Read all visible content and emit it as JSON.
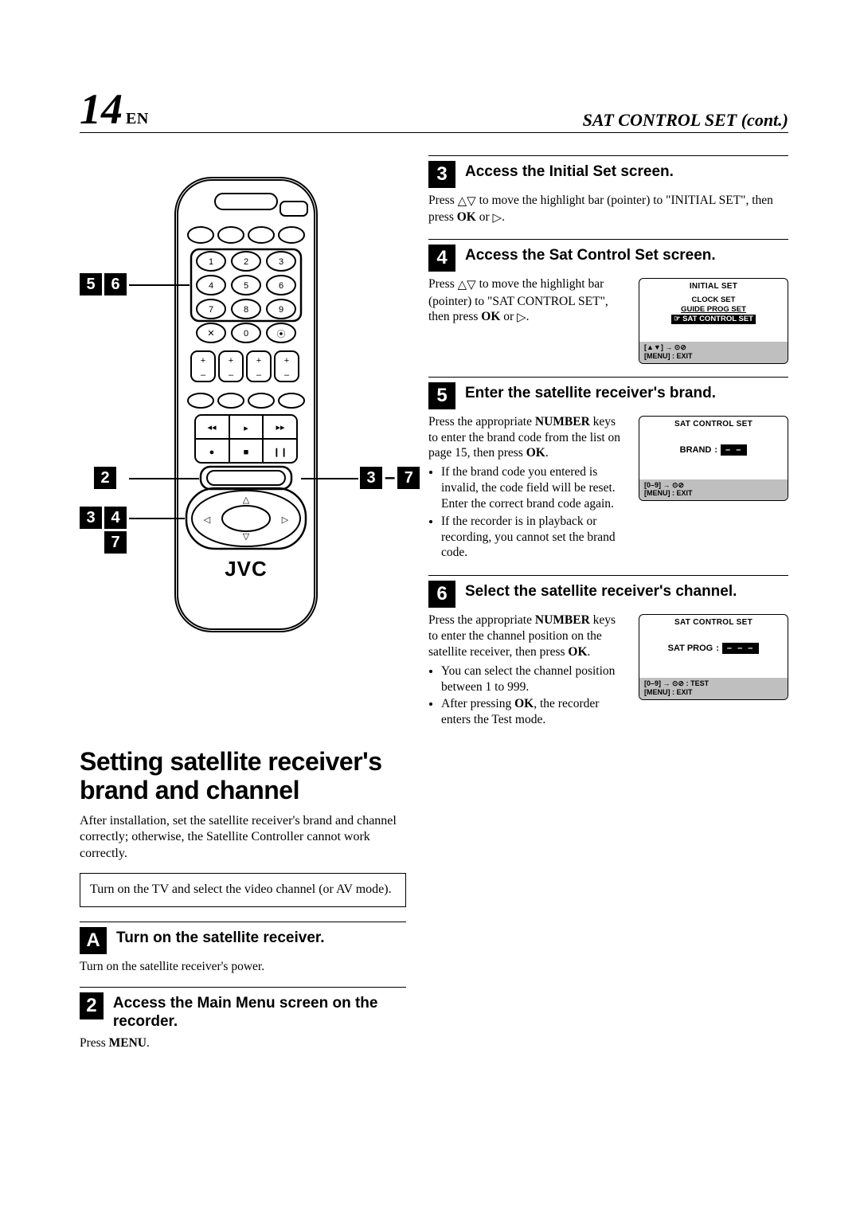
{
  "page": {
    "number": "14",
    "lang": "EN",
    "section": "SAT CONTROL SET (cont.)"
  },
  "remote": {
    "brand": "JVC",
    "callouts": {
      "top_left": [
        "5",
        "6"
      ],
      "mid_left": [
        "2"
      ],
      "mid_right": [
        "3",
        "–",
        "7"
      ],
      "low_left_a": [
        "3",
        "4"
      ],
      "low_left_b": [
        "7"
      ]
    }
  },
  "heading": "Setting satellite receiver's brand and channel",
  "intro": "After installation, set the satellite receiver's brand and channel correctly; otherwise, the Satellite Controller cannot work correctly.",
  "boxed_note": "Turn on the TV and select the video channel (or AV mode).",
  "steps": {
    "1": {
      "title": "Turn on the satellite receiver.",
      "body": "Turn on the satellite receiver's power."
    },
    "2": {
      "title": "Access the Main Menu screen on the recorder.",
      "body_html": "Press <b>MENU</b>."
    },
    "3": {
      "title": "Access the Initial Set screen.",
      "body_html": "Press <span class='tri'>△▽</span> to move the highlight bar (pointer) to \"INITIAL SET\", then press <b>OK</b> or <span class='tri'>▷</span>."
    },
    "4": {
      "title": "Access the Sat Control Set screen.",
      "body_html": "Press <span class='tri'>△▽</span> to move the highlight bar (pointer) to \"SAT CONTROL SET\", then press <b>OK</b> or <span class='tri'>▷</span>.",
      "osd": {
        "title": "INITIAL SET",
        "items": [
          "CLOCK SET",
          "GUIDE PROG SET"
        ],
        "highlight": "☞ SAT CONTROL SET",
        "foot1": "[▲▼] → ⊙⊘",
        "foot2": "[MENU] : EXIT"
      }
    },
    "5": {
      "title": "Enter the satellite receiver's brand.",
      "body_html": "Press the appropriate <b>NUMBER</b> keys to enter the brand code from the list on page 15, then press <b>OK</b>.",
      "bullets": [
        "If the brand code you entered is invalid, the code field will be reset. Enter the correct brand code again.",
        "If the recorder is in playback or recording, you cannot set the brand code."
      ],
      "osd": {
        "title": "SAT CONTROL SET",
        "kv_label": "BRAND",
        "kv_value": "– –",
        "foot1": "[0–9] → ⊙⊘",
        "foot2": "[MENU] : EXIT"
      }
    },
    "6": {
      "title": "Select the satellite receiver's channel.",
      "body_html": "Press the appropriate <b>NUMBER</b> keys to enter the channel position on the satellite receiver, then press <b>OK</b>.",
      "bullets": [
        "You can select the channel position between 1 to 999.",
        "After pressing <b>OK</b>, the recorder enters the Test mode."
      ],
      "osd": {
        "title": "SAT CONTROL SET",
        "kv_label": "SAT PROG",
        "kv_value": "– – –",
        "foot1": "[0–9] → ⊙⊘ : TEST",
        "foot2": "[MENU] : EXIT"
      }
    }
  }
}
